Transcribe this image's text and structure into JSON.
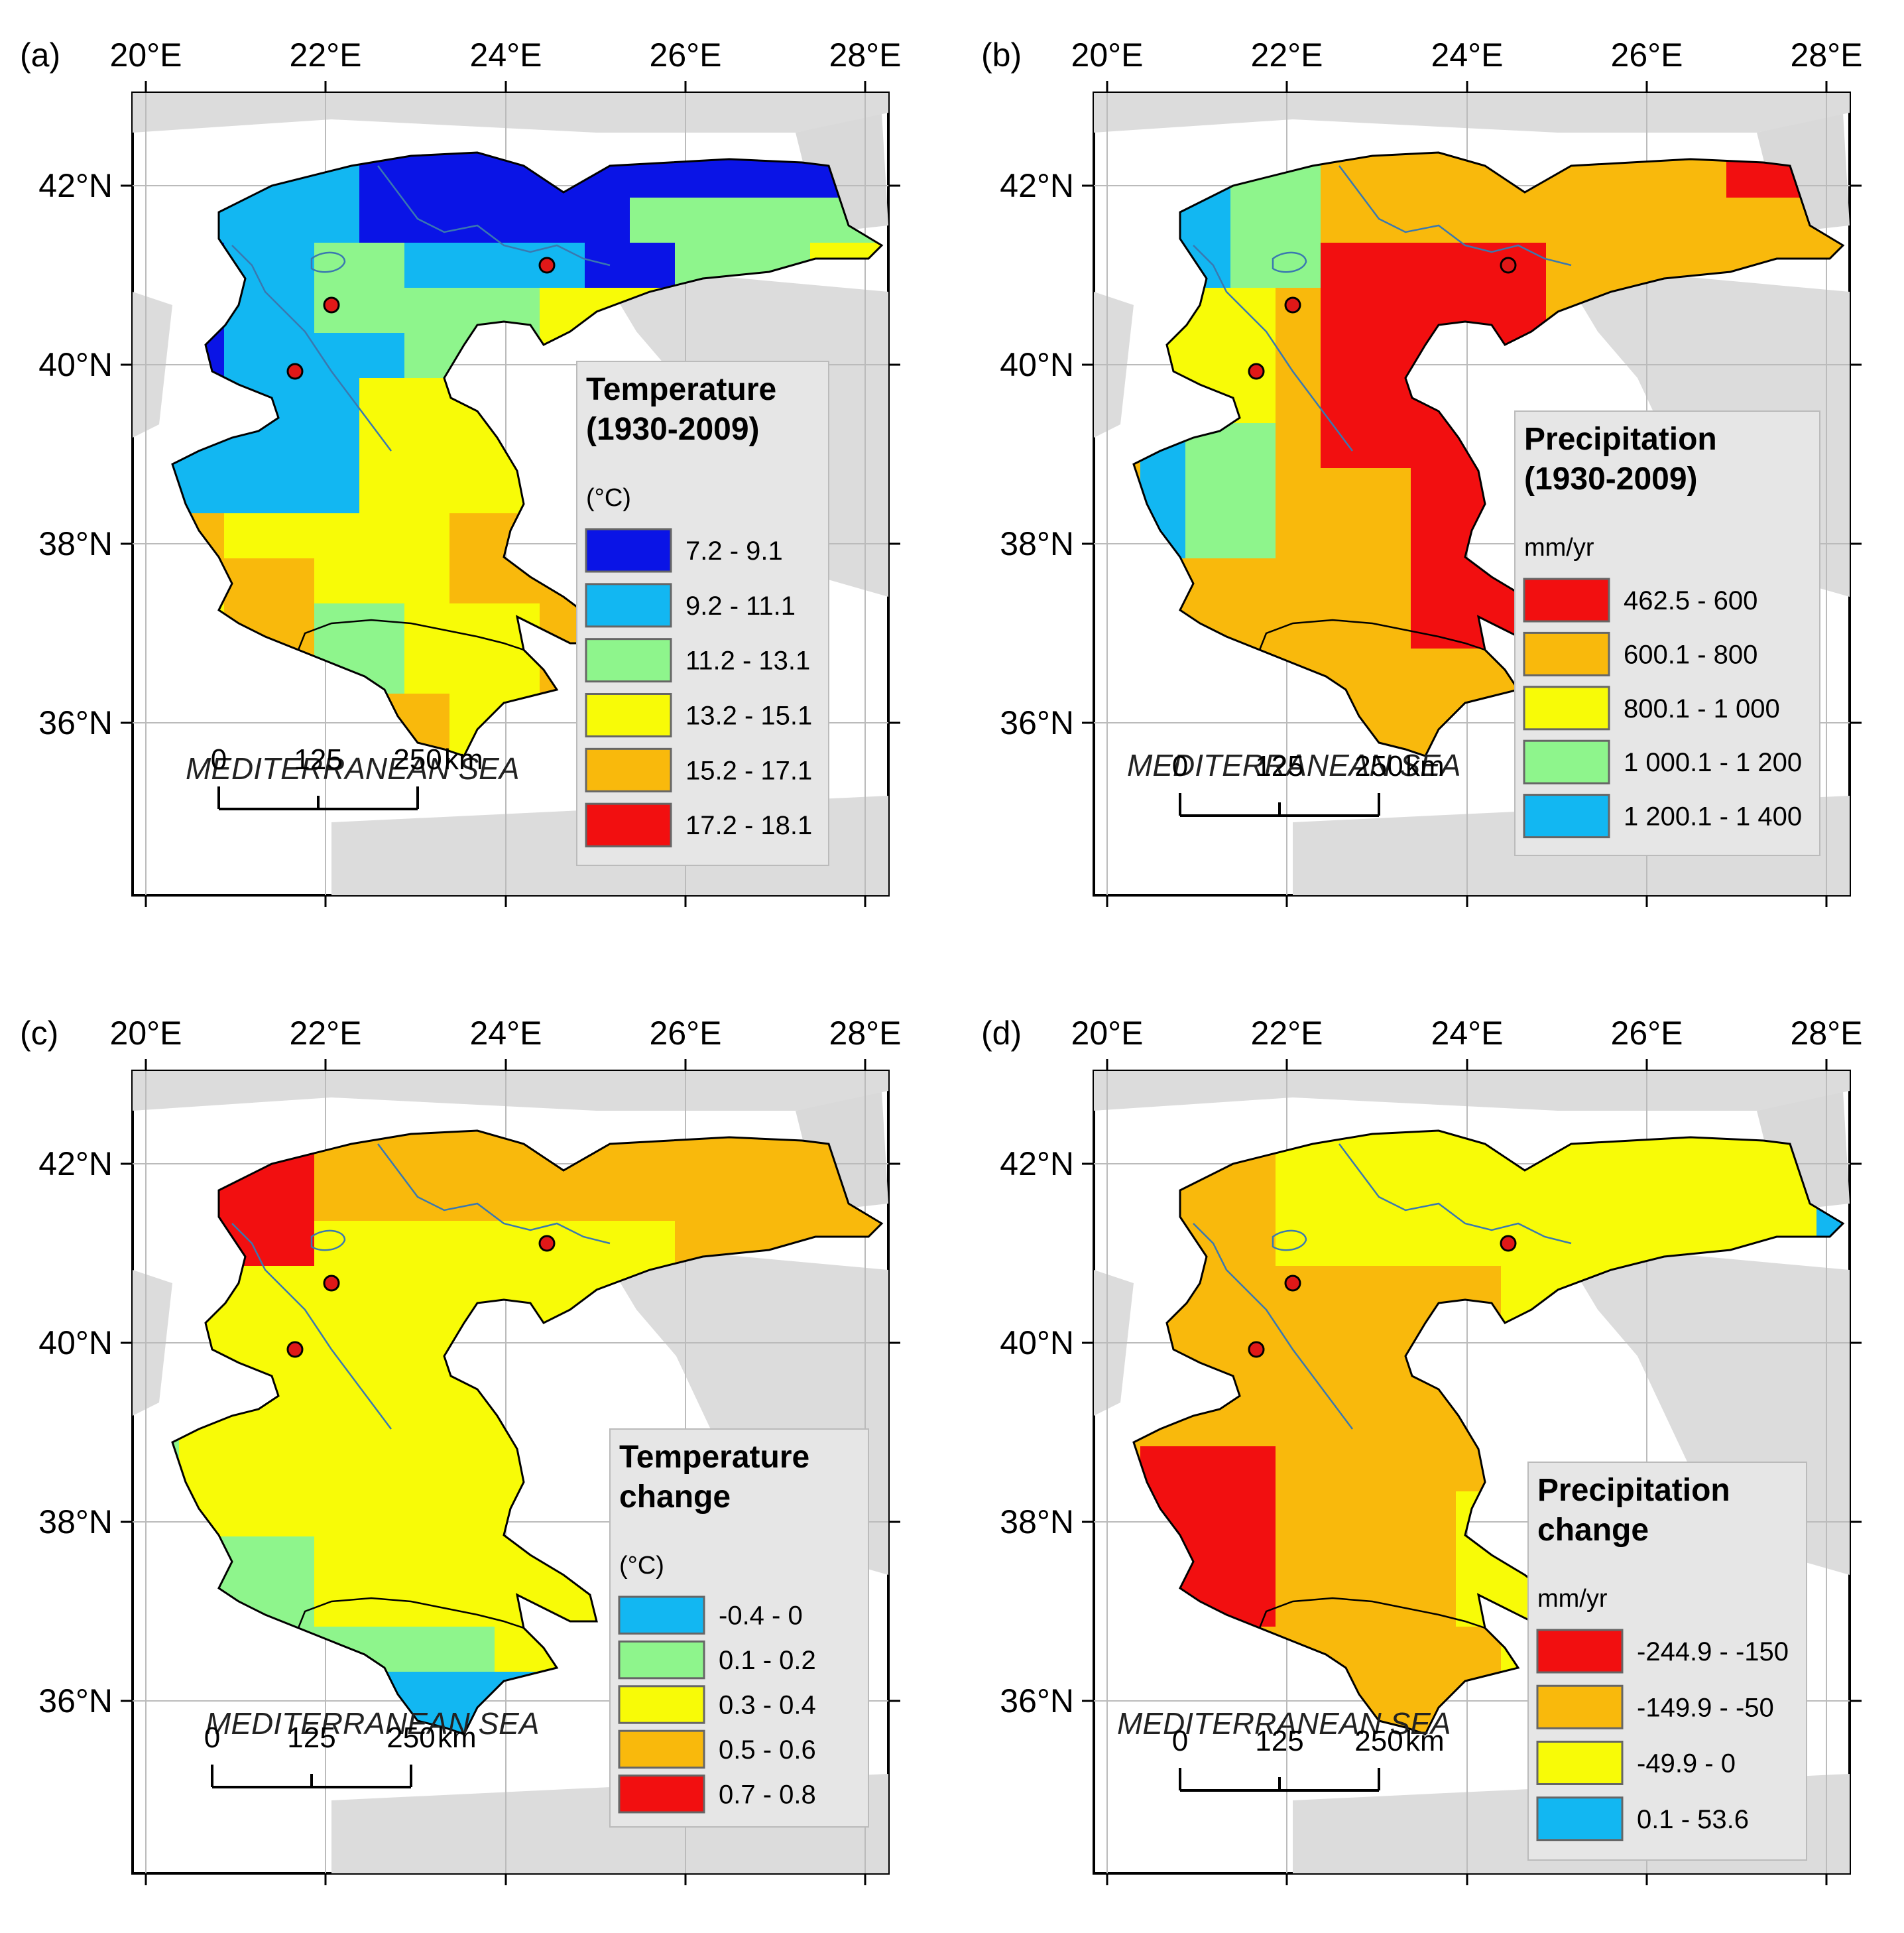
{
  "figure": {
    "panels": [
      {
        "id": "a",
        "label": "(a)",
        "lon_ticks": [
          "20°E",
          "22°E",
          "24°E",
          "26°E",
          "28°E"
        ],
        "lat_ticks": [
          "42°N",
          "40°N",
          "38°N",
          "36°N"
        ],
        "sea_label": "MEDITERRANEAN SEA",
        "scale": {
          "labels": [
            "0",
            "125",
            "250"
          ],
          "unit": "km"
        },
        "legend": {
          "title_lines": [
            "Temperature",
            "(1930-2009)"
          ],
          "unit": "(°C)",
          "classes": [
            {
              "label": "7.2 - 9.1",
              "color": "#0a14e6"
            },
            {
              "label": "9.2 - 11.1",
              "color": "#12b7f2"
            },
            {
              "label": "11.2 - 13.1",
              "color": "#8ef58c"
            },
            {
              "label": "13.2 - 15.1",
              "color": "#f8fb07"
            },
            {
              "label": "15.2 - 17.1",
              "color": "#f9b90c"
            },
            {
              "label": "17.2 - 18.1",
              "color": "#f20f10"
            }
          ]
        }
      },
      {
        "id": "b",
        "label": "(b)",
        "lon_ticks": [
          "20°E",
          "22°E",
          "24°E",
          "26°E",
          "28°E"
        ],
        "lat_ticks": [
          "42°N",
          "40°N",
          "38°N",
          "36°N"
        ],
        "sea_label": "MEDITERRANEAN SEA",
        "scale": {
          "labels": [
            "0",
            "125",
            "250"
          ],
          "unit": "km"
        },
        "legend": {
          "title_lines": [
            "Precipitation",
            "(1930-2009)"
          ],
          "unit": "mm/yr",
          "classes": [
            {
              "label": "462.5 - 600",
              "color": "#f20f10"
            },
            {
              "label": "600.1 - 800",
              "color": "#f9b90c"
            },
            {
              "label": "800.1 - 1 000",
              "color": "#f8fb07"
            },
            {
              "label": "1 000.1 - 1 200",
              "color": "#8ef58c"
            },
            {
              "label": "1 200.1 - 1 400",
              "color": "#12b7f2"
            }
          ]
        }
      },
      {
        "id": "c",
        "label": "(c)",
        "lon_ticks": [
          "20°E",
          "22°E",
          "24°E",
          "26°E",
          "28°E"
        ],
        "lat_ticks": [
          "42°N",
          "40°N",
          "38°N",
          "36°N"
        ],
        "sea_label": "MEDITERRANEAN SEA",
        "scale": {
          "labels": [
            "0",
            "125",
            "250"
          ],
          "unit": "km"
        },
        "legend": {
          "title_lines": [
            "Temperature",
            "change"
          ],
          "unit": "(°C)",
          "classes": [
            {
              "label": "-0.4 - 0",
              "color": "#12b7f2"
            },
            {
              "label": "0.1 - 0.2",
              "color": "#8ef58c"
            },
            {
              "label": "0.3 - 0.4",
              "color": "#f8fb07"
            },
            {
              "label": "0.5 - 0.6",
              "color": "#f9b90c"
            },
            {
              "label": "0.7 - 0.8",
              "color": "#f20f10"
            }
          ]
        }
      },
      {
        "id": "d",
        "label": "(d)",
        "lon_ticks": [
          "20°E",
          "22°E",
          "24°E",
          "26°E",
          "28°E"
        ],
        "lat_ticks": [
          "42°N",
          "40°N",
          "38°N",
          "36°N"
        ],
        "sea_label": "MEDITERRANEAN SEA",
        "scale": {
          "labels": [
            "0",
            "125",
            "250"
          ],
          "unit": "km"
        },
        "legend": {
          "title_lines": [
            "Precipitation",
            "change"
          ],
          "unit": "mm/yr",
          "classes": [
            {
              "label": "-244.9 - -150",
              "color": "#f20f10"
            },
            {
              "label": "-149.9 - -50",
              "color": "#f9b90c"
            },
            {
              "label": "-49.9 - 0",
              "color": "#f8fb07"
            },
            {
              "label": "0.1 - 53.6",
              "color": "#12b7f2"
            }
          ]
        }
      }
    ]
  }
}
